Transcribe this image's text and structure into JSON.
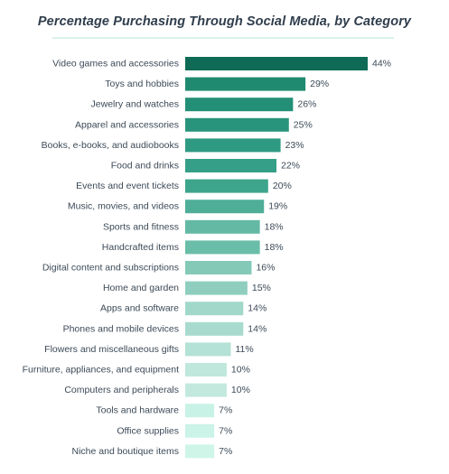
{
  "chart_data": {
    "type": "bar",
    "orientation": "horizontal",
    "title": "Percentage Purchasing Through Social Media, by Category",
    "xlabel": "",
    "ylabel": "",
    "categories": [
      "Video games and accessories",
      "Toys and hobbies",
      "Jewelry and watches",
      "Apparel and accessories",
      "Books, e-books, and audiobooks",
      "Food and drinks",
      "Events and event tickets",
      "Music, movies, and videos",
      "Sports and fitness",
      "Handcrafted items",
      "Digital content and subscriptions",
      "Home and garden",
      "Apps and software",
      "Phones and mobile devices",
      "Flowers and miscellaneous gifts",
      "Furniture, appliances, and equipment",
      "Computers and peripherals",
      "Tools and hardware",
      "Office supplies",
      "Niche and boutique items"
    ],
    "values": [
      44,
      29,
      26,
      25,
      23,
      22,
      20,
      19,
      18,
      18,
      16,
      15,
      14,
      14,
      11,
      10,
      10,
      7,
      7,
      7
    ],
    "value_labels": [
      "44%",
      "29%",
      "26%",
      "25%",
      "23%",
      "22%",
      "20%",
      "19%",
      "18%",
      "18%",
      "16%",
      "15%",
      "14%",
      "14%",
      "11%",
      "10%",
      "10%",
      "7%",
      "7%",
      "7%"
    ],
    "xlim": [
      0,
      44
    ],
    "grid": false,
    "legend": "none",
    "colors": [
      "#0f6b55",
      "#1f8a70",
      "#238f76",
      "#28947b",
      "#2f9a82",
      "#359f87",
      "#3da58c",
      "#4fae97",
      "#63b9a4",
      "#6abda8",
      "#84c9b7",
      "#8fcebe",
      "#a1d8ca",
      "#a8dbce",
      "#b4e2d6",
      "#bfe7dc",
      "#c3e9de",
      "#c8f2e5",
      "#cbf3e7",
      "#cff5e9"
    ]
  }
}
